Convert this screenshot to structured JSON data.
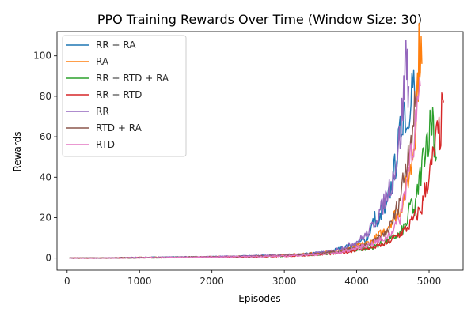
{
  "chart_data": {
    "type": "line",
    "title": "PPO Training Rewards Over Time (Window Size: 30)",
    "xlabel": "Episodes",
    "ylabel": "Rewards",
    "xlim": [
      -140,
      5470
    ],
    "ylim": [
      -6,
      112
    ],
    "xticks": [
      0,
      1000,
      2000,
      3000,
      4000,
      5000
    ],
    "yticks": [
      0,
      20,
      40,
      60,
      80,
      100
    ],
    "grid": false,
    "legend_position": "upper-left",
    "series": [
      {
        "name": "RR + RA",
        "color": "#1f77b4",
        "x": [
          30,
          500,
          1000,
          1500,
          2000,
          2500,
          3000,
          3300,
          3600,
          3800,
          4000,
          4150,
          4250,
          4300,
          4350,
          4400,
          4450,
          4500,
          4550,
          4600,
          4650,
          4700,
          4750,
          4800
        ],
        "y": [
          0,
          0,
          0.3,
          0.5,
          0.6,
          1,
          1.5,
          2,
          3,
          5,
          7,
          10,
          20,
          15,
          25,
          22,
          32,
          38,
          50,
          60,
          78,
          65,
          89,
          82
        ]
      },
      {
        "name": "RA",
        "color": "#ff7f0e",
        "x": [
          30,
          500,
          1000,
          1500,
          2000,
          2500,
          3000,
          3300,
          3600,
          3800,
          4000,
          4200,
          4400,
          4500,
          4600,
          4650,
          4700,
          4750,
          4800,
          4830,
          4860,
          4880,
          4900
        ],
        "y": [
          0,
          0,
          0.3,
          0.4,
          0.6,
          0.9,
          1.5,
          2,
          3,
          4,
          6,
          8,
          14,
          20,
          24,
          30,
          38,
          45,
          60,
          80,
          100,
          107,
          96
        ]
      },
      {
        "name": "RR + RTD + RA",
        "color": "#2ca02c",
        "x": [
          30,
          500,
          1000,
          1500,
          2000,
          2500,
          3000,
          3300,
          3600,
          3800,
          4000,
          4200,
          4400,
          4600,
          4700,
          4750,
          4800,
          4850,
          4900,
          4950,
          5000,
          5050,
          5080,
          5100
        ],
        "y": [
          0,
          0,
          0.2,
          0.3,
          0.5,
          0.7,
          1,
          1.5,
          2,
          3,
          4,
          5,
          8,
          12,
          18,
          28,
          22,
          35,
          45,
          58,
          62,
          72,
          55,
          50
        ]
      },
      {
        "name": "RR + RTD",
        "color": "#d62728",
        "x": [
          30,
          500,
          1000,
          1500,
          2000,
          2500,
          3000,
          3300,
          3600,
          3800,
          4000,
          4200,
          4400,
          4600,
          4700,
          4800,
          4900,
          4950,
          5000,
          5050,
          5100,
          5150,
          5200
        ],
        "y": [
          0,
          0,
          0.2,
          0.3,
          0.4,
          0.6,
          0.9,
          1.3,
          2,
          2.5,
          4,
          5,
          7,
          12,
          15,
          20,
          25,
          35,
          40,
          48,
          58,
          62,
          77
        ]
      },
      {
        "name": "RR",
        "color": "#9467bd",
        "x": [
          30,
          500,
          1000,
          1500,
          2000,
          2500,
          3000,
          3300,
          3600,
          3800,
          4000,
          4150,
          4250,
          4300,
          4350,
          4400,
          4450,
          4500,
          4550,
          4600,
          4650,
          4680,
          4700,
          4720
        ],
        "y": [
          0,
          0,
          0.3,
          0.5,
          0.7,
          1,
          1.5,
          2,
          3,
          5,
          8,
          12,
          18,
          22,
          25,
          30,
          35,
          40,
          50,
          60,
          80,
          103,
          95,
          85
        ]
      },
      {
        "name": "RTD + RA",
        "color": "#8c564b",
        "x": [
          30,
          500,
          1000,
          1500,
          2000,
          2500,
          3000,
          3300,
          3600,
          3800,
          4000,
          4200,
          4400,
          4500,
          4600,
          4650,
          4700,
          4750,
          4800,
          4840
        ],
        "y": [
          0,
          0,
          0.2,
          0.4,
          0.6,
          0.8,
          1.2,
          1.8,
          2.5,
          3.5,
          5,
          7,
          12,
          18,
          30,
          40,
          50,
          62,
          70,
          80
        ]
      },
      {
        "name": "RTD",
        "color": "#e377c2",
        "x": [
          30,
          500,
          1000,
          1500,
          2000,
          2500,
          3000,
          3300,
          3600,
          3800,
          4000,
          4200,
          4400,
          4500,
          4600,
          4650,
          4700,
          4750,
          4800,
          4850,
          4880
        ],
        "y": [
          0,
          0,
          0.2,
          0.3,
          0.5,
          0.7,
          1,
          1.5,
          2,
          3,
          5,
          7,
          10,
          14,
          20,
          30,
          40,
          55,
          62,
          75,
          85
        ]
      }
    ]
  }
}
